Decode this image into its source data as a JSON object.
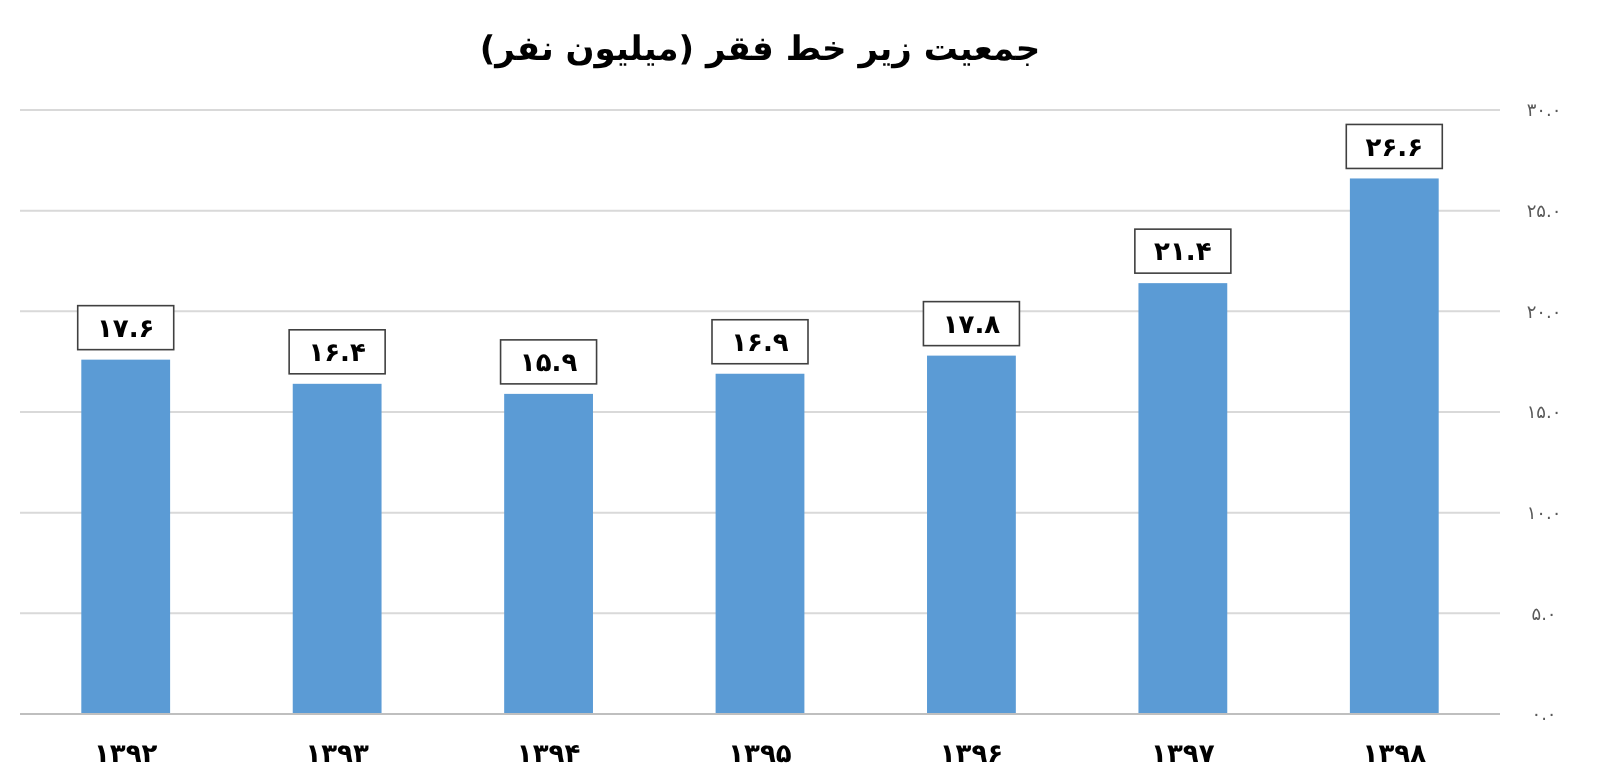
{
  "chart_data": {
    "type": "bar",
    "title": "جمعیت زیر خط فقر (میلیون نفر)",
    "categories": [
      "۱۳۹۲",
      "۱۳۹۳",
      "۱۳۹۴",
      "۱۳۹۵",
      "۱۳۹۶",
      "۱۳۹۷",
      "۱۳۹۸"
    ],
    "values": [
      17.6,
      16.4,
      15.9,
      16.9,
      17.8,
      21.4,
      26.6
    ],
    "value_labels": [
      "۱۷.۶",
      "۱۶.۴",
      "۱۵.۹",
      "۱۶.۹",
      "۱۷.۸",
      "۲۱.۴",
      "۲۶.۶"
    ],
    "color": "#5b9bd5",
    "ylim": [
      0,
      30
    ],
    "yticks": [
      {
        "value": 0,
        "label": "۰.۰"
      },
      {
        "value": 5,
        "label": "۵.۰"
      },
      {
        "value": 10,
        "label": "۱۰.۰"
      },
      {
        "value": 15,
        "label": "۱۵.۰"
      },
      {
        "value": 20,
        "label": "۲۰.۰"
      },
      {
        "value": 25,
        "label": "۲۵.۰"
      },
      {
        "value": 30,
        "label": "۳۰.۰"
      }
    ],
    "grid": "y"
  }
}
